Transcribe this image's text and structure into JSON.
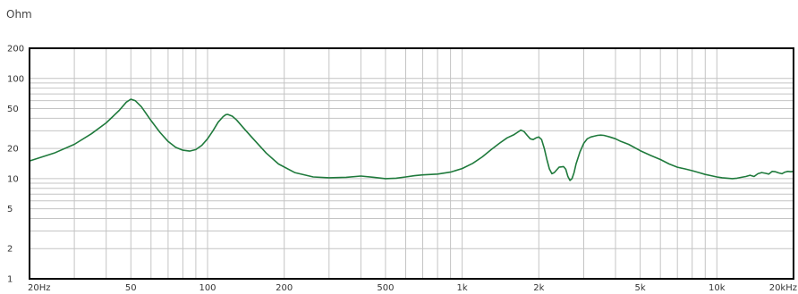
{
  "chart_data": {
    "type": "line",
    "title": "",
    "ylabel": "Ohm",
    "xlabel": "",
    "x_scale": "log",
    "y_scale": "log",
    "xlim": [
      20,
      20000
    ],
    "ylim": [
      1,
      200
    ],
    "grid": true,
    "x_tick_labels": [
      {
        "value": 20,
        "label": "20Hz"
      },
      {
        "value": 50,
        "label": "50"
      },
      {
        "value": 100,
        "label": "100"
      },
      {
        "value": 200,
        "label": "200"
      },
      {
        "value": 500,
        "label": "500"
      },
      {
        "value": 1000,
        "label": "1k"
      },
      {
        "value": 2000,
        "label": "2k"
      },
      {
        "value": 5000,
        "label": "5k"
      },
      {
        "value": 10000,
        "label": "10k"
      },
      {
        "value": 20000,
        "label": "20kHz"
      }
    ],
    "y_tick_labels": [
      {
        "value": 200,
        "label": "200"
      },
      {
        "value": 100,
        "label": "100"
      },
      {
        "value": 50,
        "label": "50"
      },
      {
        "value": 20,
        "label": "20"
      },
      {
        "value": 10,
        "label": "10"
      },
      {
        "value": 5,
        "label": "5"
      },
      {
        "value": 2,
        "label": "2"
      },
      {
        "value": 1,
        "label": "1"
      }
    ],
    "series": [
      {
        "color": "#1f7a3c",
        "x": [
          20,
          25,
          30,
          35,
          40,
          45,
          48,
          50,
          52,
          55,
          60,
          65,
          70,
          75,
          80,
          85,
          90,
          95,
          100,
          105,
          110,
          115,
          118,
          120,
          125,
          130,
          140,
          150,
          170,
          190,
          220,
          260,
          300,
          350,
          400,
          450,
          500,
          550,
          600,
          650,
          700,
          800,
          900,
          1000,
          1100,
          1200,
          1300,
          1400,
          1500,
          1600,
          1650,
          1700,
          1750,
          1800,
          1850,
          1900,
          1950,
          2000,
          2050,
          2100,
          2150,
          2200,
          2250,
          2300,
          2400,
          2500,
          2550,
          2600,
          2650,
          2700,
          2750,
          2800,
          2900,
          3000,
          3100,
          3200,
          3300,
          3400,
          3500,
          3600,
          3700,
          3800,
          4000,
          4200,
          4500,
          5000,
          5500,
          6000,
          6500,
          7000,
          7500,
          8000,
          8500,
          9000,
          9500,
          10000,
          10500,
          11000,
          11500,
          12000,
          12500,
          13000,
          13500,
          14000,
          14500,
          15000,
          15500,
          16000,
          16500,
          17000,
          17500,
          18000,
          18500,
          19000,
          19500,
          20000
        ],
        "y": [
          15,
          18,
          22,
          28,
          36,
          48,
          58,
          62,
          60,
          52,
          38,
          29,
          23.5,
          20.5,
          19.2,
          18.8,
          19.5,
          21.5,
          25,
          30,
          36.5,
          41.5,
          43.5,
          43.8,
          42,
          38.5,
          31,
          25.5,
          18,
          14,
          11.5,
          10.4,
          10.2,
          10.3,
          10.6,
          10.3,
          10.0,
          10.1,
          10.4,
          10.7,
          10.9,
          11.1,
          11.6,
          12.6,
          14.2,
          16.5,
          19.5,
          22.5,
          25.5,
          27.5,
          29,
          30.5,
          29.5,
          27,
          25,
          24.5,
          25.5,
          26,
          24.5,
          20,
          15.5,
          12.5,
          11.2,
          11.5,
          13,
          13.2,
          12.4,
          10.5,
          9.6,
          10.0,
          11.5,
          14,
          18.5,
          22.5,
          25,
          26,
          26.5,
          27,
          27.2,
          27,
          26.5,
          26,
          25,
          23.5,
          22,
          19,
          17,
          15.5,
          14,
          13,
          12.5,
          12,
          11.5,
          11,
          10.7,
          10.4,
          10.2,
          10.1,
          10.0,
          10.1,
          10.3,
          10.5,
          10.8,
          10.5,
          11.2,
          11.5,
          11.3,
          11.1,
          11.8,
          11.7,
          11.4,
          11.2,
          11.6,
          11.8,
          11.7,
          11.8
        ]
      }
    ]
  }
}
